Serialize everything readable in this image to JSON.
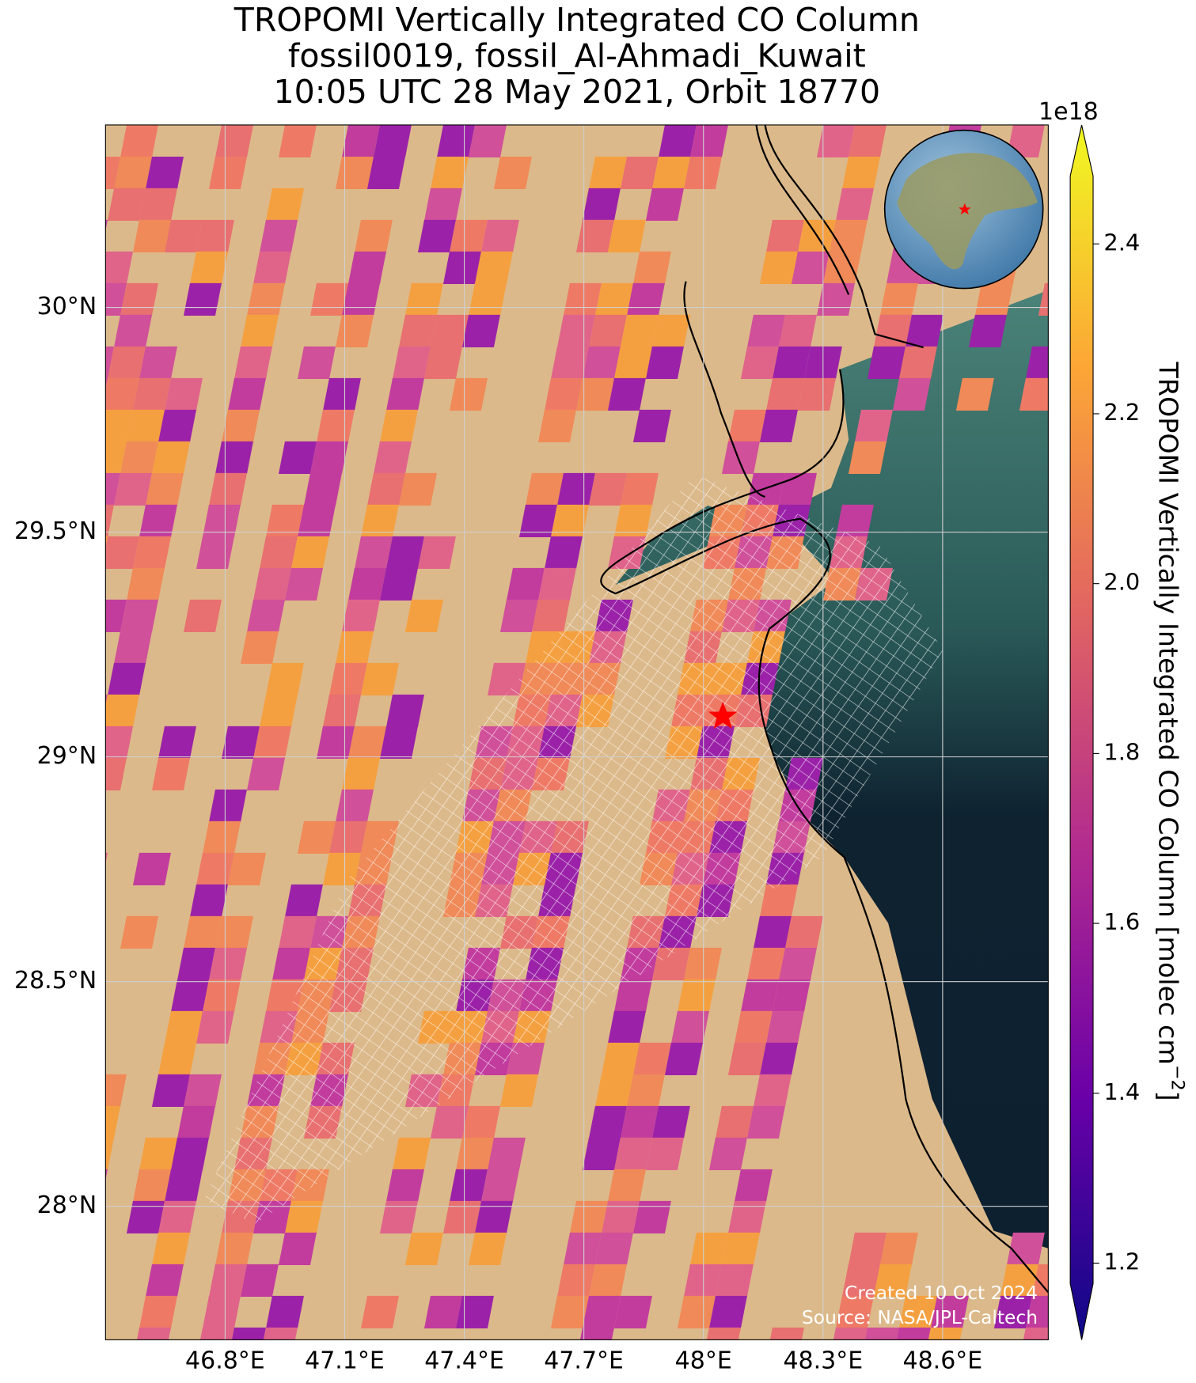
{
  "map": {
    "title": [
      "TROPOMI Vertically Integrated CO Column",
      "fossil0019, fossil_Al-Ahmadi_Kuwait",
      "10:05 UTC 28 May 2021, Orbit 18770"
    ],
    "xlim": [
      46.5,
      48.865
    ],
    "ylim": [
      27.703,
      30.406
    ],
    "xticks": [
      {
        "value": 46.8,
        "label": "46.8°E"
      },
      {
        "value": 47.1,
        "label": "47.1°E"
      },
      {
        "value": 47.4,
        "label": "47.4°E"
      },
      {
        "value": 47.7,
        "label": "47.7°E"
      },
      {
        "value": 48.0,
        "label": "48°E"
      },
      {
        "value": 48.3,
        "label": "48.3°E"
      },
      {
        "value": 48.6,
        "label": "48.6°E"
      }
    ],
    "yticks": [
      {
        "value": 28.0,
        "label": "28°N"
      },
      {
        "value": 28.5,
        "label": "28.5°N"
      },
      {
        "value": 29.0,
        "label": "29°N"
      },
      {
        "value": 29.5,
        "label": "29.5°N"
      },
      {
        "value": 30.0,
        "label": "30°N"
      }
    ],
    "grid": true,
    "credits": [
      "Created 10 Oct 2024",
      "Source: NASA/JPL-Caltech"
    ],
    "colorbar": {
      "clim": [
        1.176,
        2.48
      ],
      "ticks": [
        1.2,
        1.4,
        1.6,
        {
          "value": 2.0,
          "label": "2.0"
        },
        1.8,
        2.2,
        2.4
      ],
      "exponent": "1e18",
      "label_main": "TROPOMI Vertically Integrated CO Column [molec cm",
      "label_exponent": "−2",
      "label_close": "]"
    }
  }
}
